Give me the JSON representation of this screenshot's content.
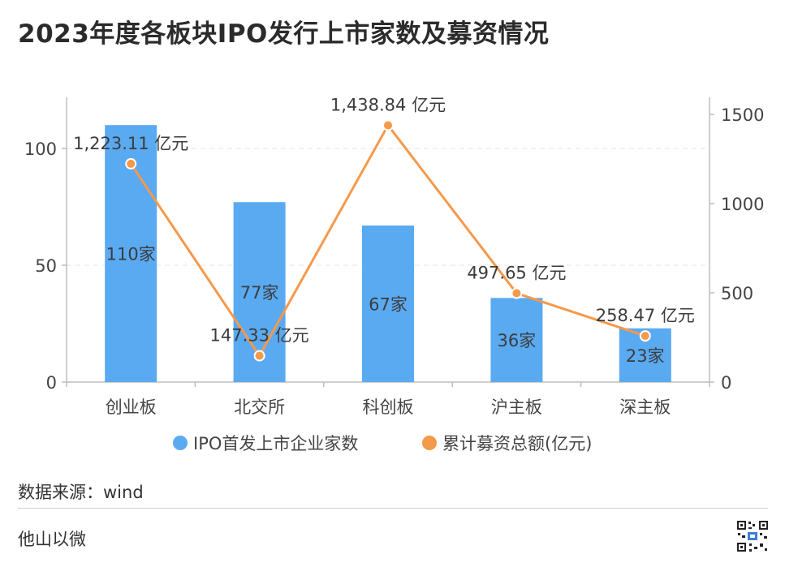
{
  "title": "2023年度各板块IPO发行上市家数及募资情况",
  "source": "数据来源：wind",
  "brand": "他山以微",
  "colors": {
    "bar": "#5aaaf2",
    "line": "#f5994a",
    "grid": "#e3e3e3",
    "axis": "#bdbdbd",
    "text": "#444444"
  },
  "chart_data": {
    "type": "bar+line",
    "categories": [
      "创业板",
      "北交所",
      "科创板",
      "沪主板",
      "深主板"
    ],
    "series": [
      {
        "name": "IPO首发上市企业家数",
        "type": "bar",
        "axis": "left",
        "values": [
          110,
          77,
          67,
          36,
          23
        ],
        "labels": [
          "110家",
          "77家",
          "67家",
          "36家",
          "23家"
        ]
      },
      {
        "name": "累计募资总额(亿元)",
        "type": "line",
        "axis": "right",
        "values": [
          1223.11,
          147.33,
          1438.84,
          497.65,
          258.47
        ],
        "labels": [
          "1,223.11 亿元",
          "147.33 亿元",
          "1,438.84 亿元",
          "497.65 亿元",
          "258.47 亿元"
        ]
      }
    ],
    "y_left": {
      "ylim": [
        0,
        120
      ],
      "ticks": [
        0,
        50,
        100
      ]
    },
    "y_right": {
      "ylim": [
        0,
        1500
      ],
      "ticks": [
        0,
        500,
        1000,
        1500
      ]
    },
    "grid": true,
    "legend": "bottom-center"
  }
}
